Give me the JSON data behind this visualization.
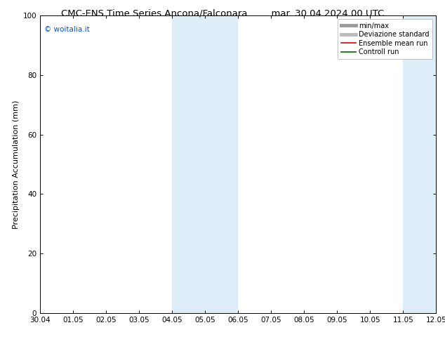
{
  "title_left": "CMC-ENS Time Series Ancona/Falconara",
  "title_right": "mar. 30.04.2024 00 UTC",
  "ylabel": "Precipitation Accumulation (mm)",
  "watermark": "© woitalia.it",
  "watermark_color": "#0055cc",
  "xlim": [
    0,
    12
  ],
  "ylim": [
    0,
    100
  ],
  "yticks": [
    0,
    20,
    40,
    60,
    80,
    100
  ],
  "xtick_labels": [
    "30.04",
    "01.05",
    "02.05",
    "03.05",
    "04.05",
    "05.05",
    "06.05",
    "07.05",
    "08.05",
    "09.05",
    "10.05",
    "11.05",
    "12.05"
  ],
  "shade_regions": [
    {
      "xstart": 4.0,
      "xend": 6.0,
      "color": "#ddeef8"
    },
    {
      "xstart": 11.0,
      "xend": 13.0,
      "color": "#ddeef8"
    }
  ],
  "legend_entries": [
    {
      "label": "min/max",
      "color": "#999999",
      "lw": 3.5
    },
    {
      "label": "Deviazione standard",
      "color": "#bbbbbb",
      "lw": 3.5
    },
    {
      "label": "Ensemble mean run",
      "color": "#dd0000",
      "lw": 1.2
    },
    {
      "label": "Controll run",
      "color": "#006600",
      "lw": 1.2
    }
  ],
  "bg_color": "#ffffff",
  "title_fontsize": 9.5,
  "ylabel_fontsize": 8,
  "tick_fontsize": 7.5,
  "watermark_fontsize": 7.5,
  "legend_fontsize": 7
}
